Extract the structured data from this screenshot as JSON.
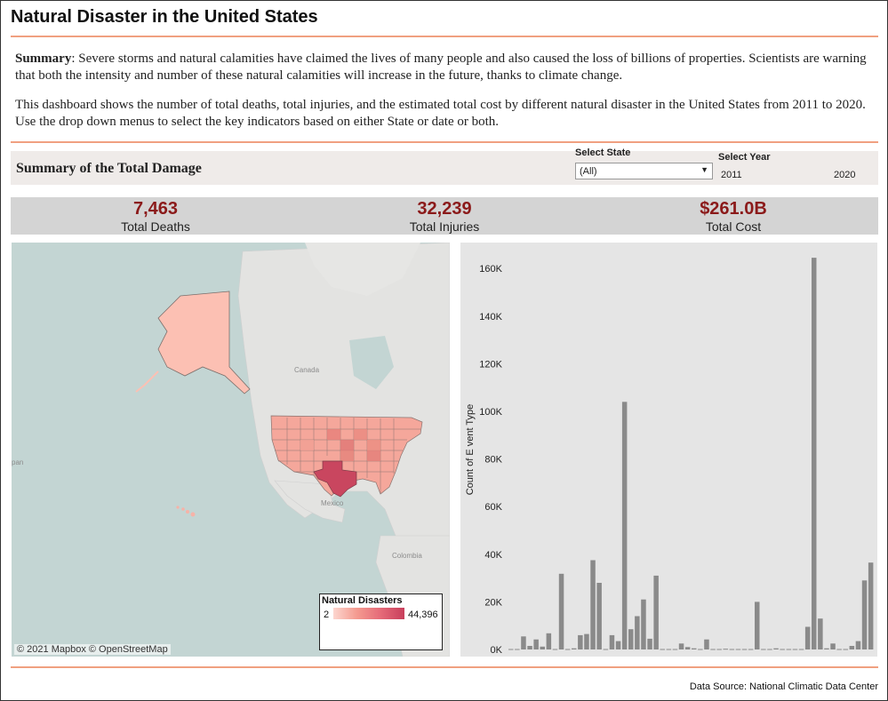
{
  "title": "Natural Disaster in the United States",
  "summary": {
    "label": "Summary",
    "text": ": Severe storms and natural calamities have claimed the lives of many people and also caused the loss of billions of properties. Scientists are warning that both the intensity and number of these natural calamities will increase in the future, thanks to climate change.",
    "description": "This dashboard shows the number of total deaths, total injuries, and the estimated total cost by different natural disaster in the United States from 2011 to 2020. Use the drop down menus to select the key indicators based on either State or date or both."
  },
  "filters": {
    "heading": "Summary of the Total Damage",
    "state_label": "Select State",
    "state_value": "(All)",
    "year_label": "Select Year",
    "year_min": "2011",
    "year_max": "2020"
  },
  "kpis": [
    {
      "value": "7,463",
      "label": "Total Deaths"
    },
    {
      "value": "32,239",
      "label": "Total Injuries"
    },
    {
      "value": "$261.0B",
      "label": "Total Cost"
    }
  ],
  "map": {
    "copyright": "© 2021 Mapbox © OpenStreetMap",
    "place_labels": [
      "Canada",
      "Mexico",
      "Colombia",
      "pan"
    ],
    "legend_title": "Natural Disasters",
    "legend_min": "2",
    "legend_max": "44,396",
    "colors": {
      "water": "#c3d5d3",
      "land": "#e3e3e1",
      "low": "#fcd6cf",
      "high": "#c83f5c"
    }
  },
  "chart_data": {
    "type": "bar",
    "ylabel": "Count of E vent Type",
    "ylim": [
      0,
      170000
    ],
    "yticks": [
      "0K",
      "20K",
      "40K",
      "60K",
      "80K",
      "100K",
      "120K",
      "140K",
      "160K"
    ],
    "bar_color": "#8a8a8a",
    "values": [
      200,
      200,
      5500,
      1500,
      4200,
      1200,
      6800,
      200,
      31800,
      200,
      500,
      6000,
      6500,
      37500,
      28000,
      200,
      6000,
      3500,
      104000,
      8500,
      14000,
      21000,
      4500,
      31000,
      200,
      200,
      200,
      2500,
      1000,
      500,
      200,
      4200,
      200,
      200,
      300,
      200,
      200,
      200,
      200,
      20000,
      200,
      200,
      500,
      200,
      200,
      200,
      200,
      9500,
      164500,
      13000,
      500,
      2500,
      200,
      200,
      1500,
      3500,
      29000,
      36500
    ]
  },
  "footer": "Data Source: National Climatic Data Center"
}
